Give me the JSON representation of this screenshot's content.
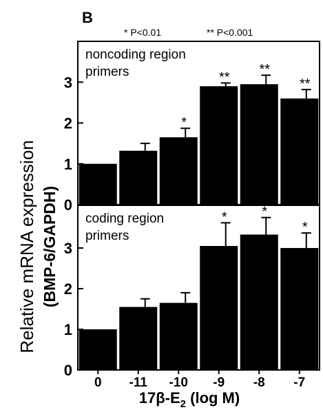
{
  "panel_label": "B",
  "significance_legend": {
    "single": "* P<0.01",
    "double": "** P<0.001"
  },
  "ylabel_line1": "Relative mRNA expression",
  "ylabel_line2": "(BMP-6/GAPDH)",
  "xlabel": {
    "prefix": "17β-E",
    "subscript": "2",
    "suffix": " (log M)"
  },
  "colors": {
    "bar": "#000000",
    "axis": "#000000",
    "background": "#ffffff"
  },
  "chart_data": [
    {
      "type": "bar",
      "title": "noncoding region primers",
      "title_lines": [
        "noncoding region",
        "primers"
      ],
      "categories": [
        "0",
        "-11",
        "-10",
        "-9",
        "-8",
        "-7"
      ],
      "values": [
        1.0,
        1.32,
        1.65,
        2.9,
        2.95,
        2.6
      ],
      "errors": [
        0,
        0.18,
        0.22,
        0.08,
        0.22,
        0.22
      ],
      "significance": [
        "",
        "",
        "*",
        "**",
        "**",
        "**"
      ],
      "ylim": [
        0,
        4
      ],
      "yticks": [
        0,
        1,
        2,
        3
      ],
      "xlabel": "17β-E2 (log M)",
      "ylabel": "Relative mRNA expression (BMP-6/GAPDH)",
      "grid": false,
      "legend": "none"
    },
    {
      "type": "bar",
      "title": "coding region primers",
      "title_lines": [
        "coding region",
        "primers"
      ],
      "categories": [
        "0",
        "-11",
        "-10",
        "-9",
        "-8",
        "-7"
      ],
      "values": [
        1.0,
        1.55,
        1.65,
        3.05,
        3.33,
        3.0
      ],
      "errors": [
        0,
        0.2,
        0.25,
        0.57,
        0.42,
        0.37
      ],
      "significance": [
        "",
        "",
        "",
        "*",
        "*",
        "*"
      ],
      "ylim": [
        0,
        4.05
      ],
      "yticks": [
        0,
        1,
        2,
        3
      ],
      "xlabel": "17β-E2 (log M)",
      "ylabel": "Relative mRNA expression (BMP-6/GAPDH)",
      "grid": false,
      "legend": "none"
    }
  ]
}
